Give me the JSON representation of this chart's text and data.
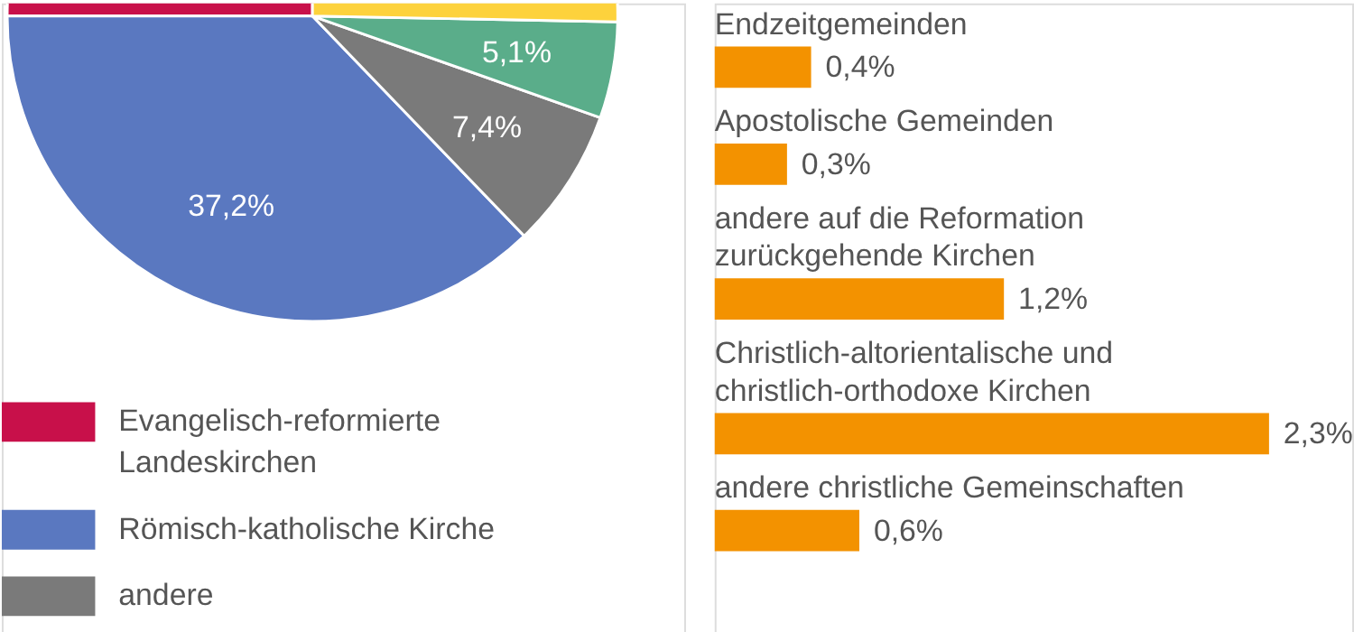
{
  "chart_data": [
    {
      "type": "pie",
      "categories": [
        "Evangelisch-reformierte Landeskirchen",
        "Römisch-katholische Kirche",
        "andere",
        null,
        null
      ],
      "values": [
        25.0,
        37.2,
        7.4,
        5.1,
        25.3
      ],
      "colors": [
        "#c8104a",
        "#5a78c0",
        "#7a7a7a",
        "#5aad8a",
        "#fdd23c"
      ],
      "value_labels": [
        null,
        "37,2%",
        "7,4%",
        "5,1%",
        null
      ],
      "legend": "bottom left"
    },
    {
      "type": "bar",
      "orientation": "horizontal",
      "categories": [
        "Endzeitgemeinden",
        "Apostolische Gemeinden",
        "andere auf die Reformation zurückgehende Kirchen",
        "Christlich-altorientalische und christlich-orthodoxe Kirchen",
        "andere christliche Gemeinschaften"
      ],
      "values": [
        0.4,
        0.3,
        1.2,
        2.3,
        0.6
      ],
      "color": "#f39200",
      "value_labels": [
        "0,4%",
        "0,3%",
        "1,2%",
        "2,3%",
        "0,6%"
      ]
    }
  ]
}
